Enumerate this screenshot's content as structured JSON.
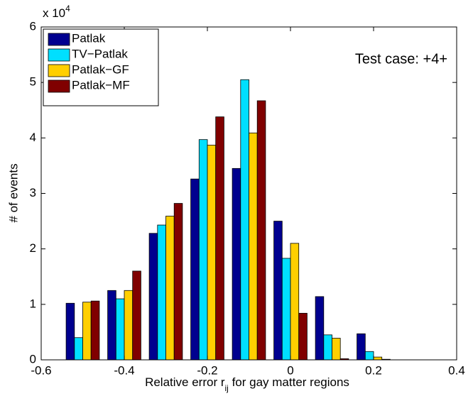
{
  "chart_data": {
    "type": "bar",
    "x": [
      -0.5,
      -0.4,
      -0.3,
      -0.2,
      -0.1,
      0,
      0.1,
      0.2
    ],
    "series": [
      {
        "name": "Patlak",
        "color": "#00008f",
        "values": [
          1.02,
          1.25,
          2.28,
          3.26,
          3.45,
          2.5,
          1.14,
          0.47
        ]
      },
      {
        "name": "TV−Patlak",
        "color": "#00dfff",
        "values": [
          0.4,
          1.1,
          2.43,
          3.97,
          5.05,
          1.83,
          0.45,
          0.15
        ]
      },
      {
        "name": "Patlak−GF",
        "color": "#ffcf00",
        "values": [
          1.04,
          1.25,
          2.59,
          3.87,
          4.09,
          2.1,
          0.39,
          0.05
        ]
      },
      {
        "name": "Patlak−MF",
        "color": "#800000",
        "values": [
          1.06,
          1.6,
          2.82,
          4.38,
          4.67,
          0.84,
          0.02,
          0.01
        ]
      }
    ],
    "xlim": [
      -0.6,
      0.4
    ],
    "xticks": [
      -0.6,
      -0.4,
      -0.2,
      0,
      0.2,
      0.4
    ],
    "ylim": [
      0,
      6
    ],
    "yticks": [
      0,
      1,
      2,
      3,
      4,
      5,
      6
    ],
    "y_multiplier": {
      "base": "x 10",
      "exponent": "4"
    },
    "ylabel": "# of events",
    "xlabel": {
      "before": "Relative error r",
      "subscript": "ij",
      "after": " for gay matter regions"
    },
    "annotation": "Test case: +4+",
    "legend": "upper left",
    "grid": false
  }
}
